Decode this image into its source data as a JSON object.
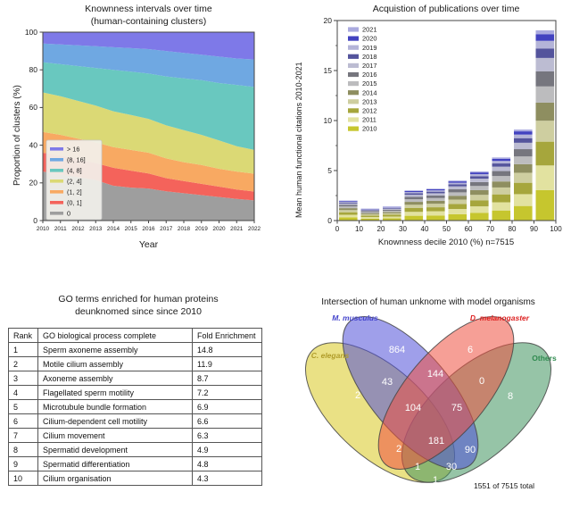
{
  "chart_data": [
    {
      "id": "knownness_area",
      "type": "area",
      "stacked": true,
      "title": "Knownness intervals over time (human-containing clusters)",
      "title_line1": "Knownness intervals over time",
      "title_line2": "(human-containing clusters)",
      "xlabel": "Year",
      "ylabel": "Proportion of clusters (%)",
      "x": [
        2010,
        2011,
        2012,
        2013,
        2014,
        2015,
        2016,
        2017,
        2018,
        2019,
        2020,
        2021,
        2022
      ],
      "ylim": [
        0,
        100
      ],
      "yticks": [
        0,
        20,
        40,
        60,
        80,
        100
      ],
      "grid": false,
      "legend_position": "lower left",
      "series": [
        {
          "name": "0",
          "color": "#9e9e9e",
          "values": [
            26,
            24.5,
            23,
            21.5,
            18.5,
            17.5,
            17,
            15.5,
            14.5,
            13.5,
            12.5,
            11.5,
            10.7
          ]
        },
        {
          "name": "(0, 1]",
          "color": "#f4635b",
          "values": [
            10,
            10,
            9.5,
            9,
            9.5,
            9,
            8,
            7,
            6.5,
            6,
            5.5,
            5,
            4.7
          ]
        },
        {
          "name": "(1, 2]",
          "color": "#f8a962",
          "values": [
            11,
            11,
            11,
            11,
            11,
            11,
            11,
            10.5,
            10,
            10,
            9.5,
            9.5,
            9.5
          ]
        },
        {
          "name": "(2, 4]",
          "color": "#dbd975",
          "values": [
            21,
            20.5,
            20,
            19.5,
            19,
            18.5,
            18,
            17.5,
            17,
            16,
            15,
            13.5,
            12.6
          ]
        },
        {
          "name": "(4, 8]",
          "color": "#69c8bf",
          "values": [
            16,
            17,
            18.5,
            20,
            22,
            23,
            24,
            26,
            27.5,
            29,
            30.5,
            32.5,
            33.4
          ]
        },
        {
          "name": "(8, 16]",
          "color": "#6fa8e2",
          "values": [
            10,
            10.5,
            11,
            11.5,
            12,
            12.5,
            13,
            13.5,
            13.5,
            13.5,
            14,
            14,
            14.6
          ]
        },
        {
          "name": "> 16",
          "color": "#7e79e8",
          "values": [
            6,
            6.5,
            7,
            7.5,
            8,
            8.5,
            9,
            10,
            11,
            12,
            13,
            14,
            14.5
          ]
        }
      ]
    },
    {
      "id": "citations_bars",
      "type": "bar",
      "stacked": true,
      "title": "Acquistion of publications over time",
      "xlabel": "Knownness decile 2010 (%) n=7515",
      "ylabel": "Mean human functional citations 2010-2021",
      "xticks": [
        0,
        10,
        20,
        30,
        40,
        50,
        60,
        70,
        80,
        90,
        100
      ],
      "yticks": [
        0,
        5,
        10,
        15,
        20
      ],
      "ylim": [
        0,
        20
      ],
      "bar_centers": [
        5,
        15,
        25,
        35,
        45,
        55,
        65,
        75,
        85,
        95
      ],
      "bar_totals": [
        2.0,
        1.2,
        1.4,
        3.0,
        3.2,
        4.0,
        4.9,
        6.3,
        9.1,
        19.0
      ],
      "legend_position": "upper left",
      "series": [
        {
          "name": "2010",
          "color": "#c6c62e",
          "values": [
            0.32,
            0.19,
            0.22,
            0.48,
            0.51,
            0.64,
            0.78,
            1.01,
            1.46,
            3.04
          ]
        },
        {
          "name": "2011",
          "color": "#e2e2a0",
          "values": [
            0.26,
            0.16,
            0.18,
            0.39,
            0.42,
            0.52,
            0.64,
            0.82,
            1.18,
            2.47
          ]
        },
        {
          "name": "2012",
          "color": "#a6a63c",
          "values": [
            0.25,
            0.15,
            0.18,
            0.38,
            0.4,
            0.5,
            0.61,
            0.79,
            1.14,
            2.38
          ]
        },
        {
          "name": "2013",
          "color": "#cecea0",
          "values": [
            0.22,
            0.13,
            0.15,
            0.33,
            0.35,
            0.44,
            0.54,
            0.69,
            1.0,
            2.09
          ]
        },
        {
          "name": "2014",
          "color": "#8e8e60",
          "values": [
            0.19,
            0.11,
            0.13,
            0.29,
            0.3,
            0.38,
            0.47,
            0.6,
            0.86,
            1.81
          ]
        },
        {
          "name": "2015",
          "color": "#bcbcbe",
          "values": [
            0.17,
            0.1,
            0.12,
            0.26,
            0.27,
            0.34,
            0.42,
            0.54,
            0.77,
            1.62
          ]
        },
        {
          "name": "2016",
          "color": "#76767e",
          "values": [
            0.16,
            0.1,
            0.11,
            0.24,
            0.26,
            0.32,
            0.39,
            0.5,
            0.73,
            1.52
          ]
        },
        {
          "name": "2017",
          "color": "#bcbcd2",
          "values": [
            0.14,
            0.08,
            0.1,
            0.21,
            0.22,
            0.28,
            0.34,
            0.44,
            0.64,
            1.33
          ]
        },
        {
          "name": "2018",
          "color": "#54549c",
          "values": [
            0.1,
            0.06,
            0.07,
            0.15,
            0.16,
            0.2,
            0.25,
            0.32,
            0.46,
            0.95
          ]
        },
        {
          "name": "2019",
          "color": "#b4b4d8",
          "values": [
            0.08,
            0.05,
            0.06,
            0.12,
            0.13,
            0.16,
            0.2,
            0.25,
            0.36,
            0.76
          ]
        },
        {
          "name": "2020",
          "color": "#4242c0",
          "values": [
            0.07,
            0.04,
            0.05,
            0.11,
            0.11,
            0.14,
            0.17,
            0.22,
            0.32,
            0.67
          ]
        },
        {
          "name": "2021",
          "color": "#aaaadf",
          "values": [
            0.04,
            0.02,
            0.03,
            0.06,
            0.06,
            0.08,
            0.1,
            0.13,
            0.18,
            0.38
          ]
        }
      ]
    },
    {
      "id": "go_table",
      "type": "table",
      "title": "GO terms enriched for human proteins deunknomed since since 2010",
      "title_line1": "GO terms enriched for human proteins",
      "title_line2": "deunknomed since since 2010",
      "columns": [
        "Rank",
        "GO biological process complete",
        "Fold Enrichment"
      ],
      "rows": [
        {
          "rank": "1",
          "term": "Sperm axoneme assembly",
          "fold": "14.8"
        },
        {
          "rank": "2",
          "term": "Motile cilium assembly",
          "fold": "11.9"
        },
        {
          "rank": "3",
          "term": "Axoneme assembly",
          "fold": "8.7"
        },
        {
          "rank": "4",
          "term": "Flagellated sperm motility",
          "fold": "7.2"
        },
        {
          "rank": "5",
          "term": "Microtubule bundle formation",
          "fold": "6.9"
        },
        {
          "rank": "6",
          "term": "Cilium-dependent cell motility",
          "fold": "6.6"
        },
        {
          "rank": "7",
          "term": "Cilium movement",
          "fold": "6.3"
        },
        {
          "rank": "8",
          "term": "Spermatid development",
          "fold": "4.9"
        },
        {
          "rank": "9",
          "term": "Spermatid differentiation",
          "fold": "4.8"
        },
        {
          "rank": "10",
          "term": "Cilium organisation",
          "fold": "4.3"
        }
      ]
    },
    {
      "id": "unknome_venn",
      "type": "venn4",
      "title": "Intersection of human unknome with model organisms",
      "total_label": "1551 of 7515 total",
      "sets": [
        {
          "key": "c_elegans",
          "label": "C. elegans",
          "label_color": "#b09c2a",
          "color": "#d8c820"
        },
        {
          "key": "m_musculus",
          "label": "M. musculus",
          "label_color": "#4444cc",
          "color": "#5050d8"
        },
        {
          "key": "d_melanogaster",
          "label": "D. melanogaster",
          "label_color": "#dd2222",
          "color": "#ee5040"
        },
        {
          "key": "others",
          "label": "Others",
          "label_color": "#2f8a4f",
          "color": "#40935e"
        }
      ],
      "regions": {
        "c_elegans_only": 2,
        "m_musculus_only": 864,
        "d_melanogaster_only": 6,
        "others_only": 8,
        "ce_mm": 43,
        "mm_dm": 144,
        "dm_ot": 0,
        "ce_dm": 2,
        "mm_ot": 90,
        "ce_ot": 1,
        "ce_mm_dm": 104,
        "mm_dm_ot": 75,
        "ce_mm_ot": 30,
        "ce_dm_ot": 1,
        "all_four": 181
      }
    }
  ]
}
